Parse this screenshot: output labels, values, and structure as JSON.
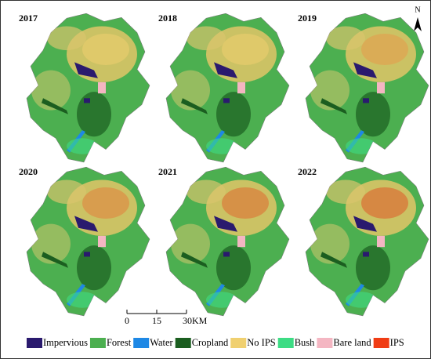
{
  "panels": [
    {
      "label": "2017"
    },
    {
      "label": "2018"
    },
    {
      "label": "2019"
    },
    {
      "label": "2020"
    },
    {
      "label": "2021"
    },
    {
      "label": "2022"
    }
  ],
  "north": "N",
  "scale_bar": {
    "labels": [
      "0",
      "15",
      "30KM"
    ]
  },
  "legend": [
    {
      "name": "Impervious",
      "color": "#2a1a6e"
    },
    {
      "name": "Forest",
      "color": "#4caf50"
    },
    {
      "name": "Water",
      "color": "#1e88e5"
    },
    {
      "name": "Cropland",
      "color": "#1b5e20"
    },
    {
      "name": "No IPS",
      "color": "#f0d070"
    },
    {
      "name": "Bush",
      "color": "#3ddc84"
    },
    {
      "name": "Bare land",
      "color": "#f4b6c2"
    },
    {
      "name": "IPS",
      "color": "#f03c14"
    }
  ]
}
